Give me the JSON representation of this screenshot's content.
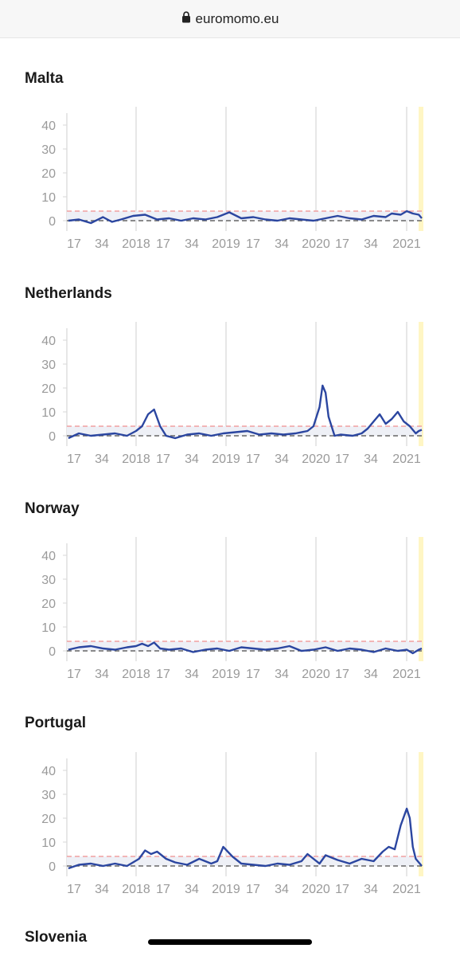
{
  "browser": {
    "url": "euromomo.eu"
  },
  "sections": [
    {
      "title": "Malta"
    },
    {
      "title": "Netherlands"
    },
    {
      "title": "Norway"
    },
    {
      "title": "Portugal"
    },
    {
      "title": "Slovenia"
    }
  ],
  "colors": {
    "series": "#2b46a0",
    "threshold": "#f0a0a0",
    "baseline": "#666666",
    "grid": "#d7d7d7",
    "highlight": "#fff6c4",
    "ticks": "#9a9a9a"
  },
  "chart_data": [
    {
      "type": "line",
      "country": "Malta",
      "yticks": [
        0,
        10,
        20,
        30,
        40
      ],
      "ylim": [
        -3,
        45
      ],
      "xtick_labels": [
        "17",
        "34",
        "2018",
        "17",
        "34",
        "2019",
        "17",
        "34",
        "2020",
        "17",
        "34",
        "2021"
      ],
      "threshold": 4,
      "baseline": 0,
      "series": [
        {
          "x": [
            1,
            8,
            16,
            24,
            30,
            36,
            44,
            52,
            60,
            68,
            76,
            84,
            92,
            100,
            108,
            116,
            124,
            132,
            140,
            148,
            156,
            164,
            172,
            180,
            188,
            196,
            204,
            212,
            216,
            222,
            226,
            230,
            234,
            236
          ],
          "y": [
            0,
            0.5,
            -1,
            1.5,
            -0.5,
            0.5,
            2,
            2.5,
            0.5,
            1,
            0,
            1,
            0.5,
            1.5,
            3.5,
            1,
            1.5,
            0.5,
            0,
            1,
            0.5,
            0,
            1,
            2,
            1,
            0.5,
            2,
            1.5,
            3,
            2.5,
            4,
            3,
            2.5,
            1
          ]
        }
      ]
    },
    {
      "type": "line",
      "country": "Netherlands",
      "yticks": [
        0,
        10,
        20,
        30,
        40
      ],
      "ylim": [
        -3,
        45
      ],
      "xtick_labels": [
        "17",
        "34",
        "2018",
        "17",
        "34",
        "2019",
        "17",
        "34",
        "2020",
        "17",
        "34",
        "2021"
      ],
      "threshold": 4,
      "baseline": 0,
      "series": [
        {
          "x": [
            1,
            8,
            16,
            24,
            32,
            40,
            46,
            50,
            54,
            58,
            62,
            66,
            72,
            80,
            88,
            96,
            104,
            112,
            120,
            128,
            136,
            144,
            152,
            160,
            164,
            168,
            170,
            172,
            174,
            178,
            182,
            190,
            196,
            200,
            204,
            208,
            212,
            216,
            220,
            224,
            228,
            232,
            234,
            236
          ],
          "y": [
            -1,
            1,
            0,
            0.5,
            1,
            0,
            2,
            4,
            9,
            11,
            4,
            0,
            -1,
            0.5,
            1,
            0,
            1,
            1.5,
            2,
            0.5,
            1,
            0.5,
            1,
            2,
            4,
            12,
            21,
            18,
            8,
            0,
            0.5,
            0,
            1,
            3,
            6,
            9,
            5,
            7,
            10,
            6,
            4,
            1,
            2,
            2.5
          ]
        }
      ]
    },
    {
      "type": "line",
      "country": "Norway",
      "yticks": [
        0,
        10,
        20,
        30,
        40
      ],
      "ylim": [
        -3,
        45
      ],
      "xtick_labels": [
        "17",
        "34",
        "2018",
        "17",
        "34",
        "2019",
        "17",
        "34",
        "2020",
        "17",
        "34",
        "2021"
      ],
      "threshold": 4,
      "baseline": 0,
      "series": [
        {
          "x": [
            1,
            8,
            16,
            24,
            32,
            40,
            46,
            50,
            54,
            58,
            62,
            68,
            76,
            84,
            92,
            100,
            108,
            116,
            124,
            132,
            140,
            148,
            156,
            164,
            172,
            180,
            188,
            196,
            204,
            212,
            220,
            226,
            230,
            234,
            236
          ],
          "y": [
            0.5,
            1.5,
            2,
            1,
            0.5,
            1.5,
            2,
            3,
            2,
            3.5,
            1,
            0.5,
            1,
            -0.5,
            0.5,
            1,
            0,
            1.5,
            1,
            0.5,
            1,
            2,
            0,
            0.5,
            1.5,
            0,
            1,
            0.5,
            -0.5,
            1,
            0,
            0.5,
            -1,
            0.5,
            1
          ]
        }
      ]
    },
    {
      "type": "line",
      "country": "Portugal",
      "yticks": [
        0,
        10,
        20,
        30,
        40
      ],
      "ylim": [
        -3,
        45
      ],
      "xtick_labels": [
        "17",
        "34",
        "2018",
        "17",
        "34",
        "2019",
        "17",
        "34",
        "2020",
        "17",
        "34",
        "2021"
      ],
      "threshold": 4,
      "baseline": 0,
      "series": [
        {
          "x": [
            1,
            8,
            16,
            24,
            32,
            40,
            48,
            52,
            56,
            60,
            66,
            72,
            80,
            88,
            96,
            100,
            104,
            110,
            116,
            124,
            132,
            140,
            148,
            156,
            160,
            164,
            168,
            172,
            180,
            188,
            196,
            204,
            210,
            214,
            218,
            222,
            226,
            228,
            230,
            232,
            236
          ],
          "y": [
            -1,
            0.5,
            1,
            0,
            1,
            0,
            3,
            6.5,
            5,
            6,
            3,
            1.5,
            0.5,
            3,
            1,
            2,
            8,
            4,
            1,
            0.5,
            0,
            1,
            0.5,
            2,
            5,
            3,
            1,
            4.5,
            2.5,
            1,
            3,
            2,
            6,
            8,
            7,
            17,
            24,
            20,
            8,
            3,
            0
          ]
        }
      ]
    }
  ]
}
